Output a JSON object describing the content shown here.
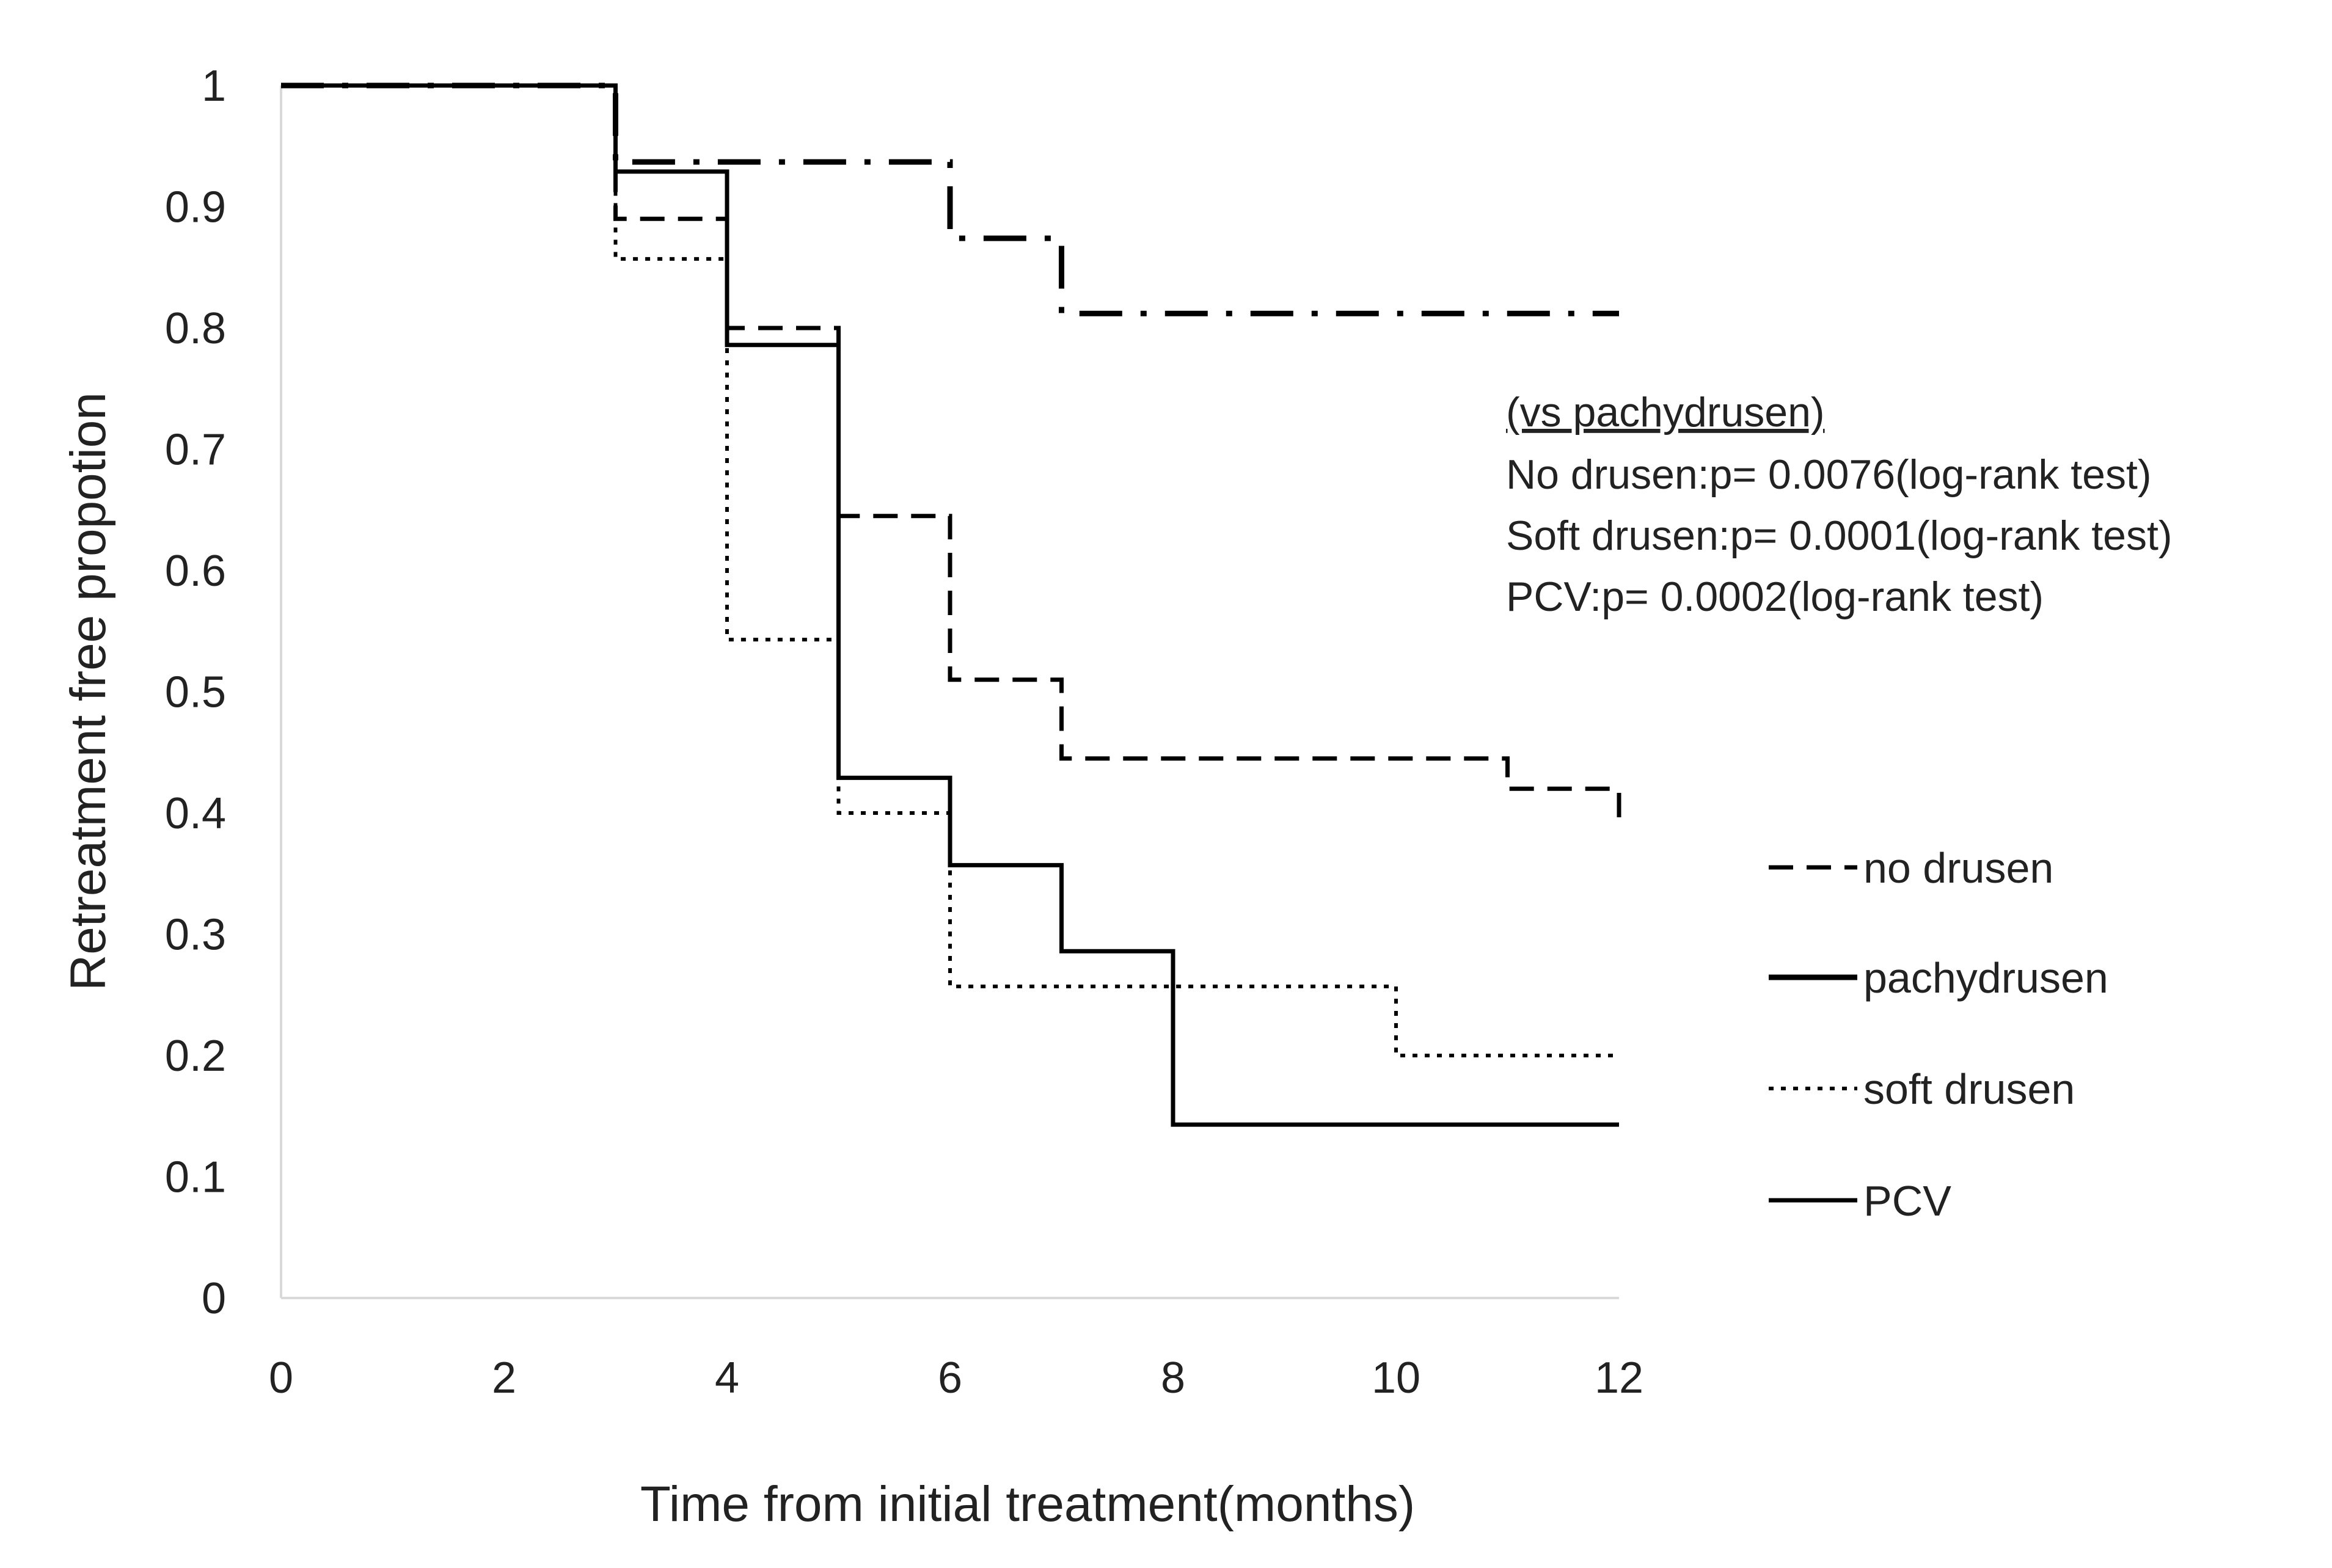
{
  "chart_data": {
    "type": "line",
    "title": "",
    "xlabel": "Time from initial treatment(months)",
    "ylabel": "Retreatment free propotion",
    "xlim": [
      0,
      12
    ],
    "ylim": [
      0,
      1
    ],
    "x_ticks": [
      0,
      2,
      4,
      6,
      8,
      10,
      12
    ],
    "y_ticks": [
      0,
      0.1,
      0.2,
      0.3,
      0.4,
      0.5,
      0.6,
      0.7,
      0.8,
      0.9,
      1
    ],
    "y_tick_labels": [
      "0",
      "0.1",
      "0.2",
      "0.3",
      "0.4",
      "0.5",
      "0.6",
      "0.7",
      "0.8",
      "0.9",
      "1"
    ],
    "grid": false,
    "legend_position": "right",
    "series": [
      {
        "name": "no drusen",
        "style": "dashed",
        "points": [
          [
            0,
            1.0
          ],
          [
            3,
            1.0
          ],
          [
            3,
            0.89
          ],
          [
            4,
            0.89
          ],
          [
            4,
            0.8
          ],
          [
            5,
            0.8
          ],
          [
            5,
            0.645
          ],
          [
            6,
            0.645
          ],
          [
            6,
            0.51
          ],
          [
            7,
            0.51
          ],
          [
            7,
            0.445
          ],
          [
            11,
            0.445
          ],
          [
            11,
            0.42
          ],
          [
            12,
            0.42
          ],
          [
            12,
            0.395
          ]
        ]
      },
      {
        "name": "pachydrusen",
        "style": "dash-dot",
        "points": [
          [
            0,
            1.0
          ],
          [
            3,
            1.0
          ],
          [
            3,
            0.937
          ],
          [
            6,
            0.937
          ],
          [
            6,
            0.874
          ],
          [
            7,
            0.874
          ],
          [
            7,
            0.812
          ],
          [
            12,
            0.812
          ]
        ]
      },
      {
        "name": "soft drusen",
        "style": "dotted",
        "points": [
          [
            0,
            1.0
          ],
          [
            3,
            1.0
          ],
          [
            3,
            0.857
          ],
          [
            4,
            0.857
          ],
          [
            4,
            0.543
          ],
          [
            5,
            0.543
          ],
          [
            5,
            0.4
          ],
          [
            6,
            0.4
          ],
          [
            6,
            0.257
          ],
          [
            10,
            0.257
          ],
          [
            10,
            0.2
          ],
          [
            12,
            0.2
          ]
        ]
      },
      {
        "name": "PCV",
        "style": "solid",
        "points": [
          [
            0,
            1.0
          ],
          [
            3,
            1.0
          ],
          [
            3,
            0.929
          ],
          [
            4,
            0.929
          ],
          [
            4,
            0.786
          ],
          [
            5,
            0.786
          ],
          [
            5,
            0.429
          ],
          [
            6,
            0.429
          ],
          [
            6,
            0.357
          ],
          [
            7,
            0.357
          ],
          [
            7,
            0.286
          ],
          [
            8,
            0.286
          ],
          [
            8,
            0.143
          ],
          [
            12,
            0.143
          ]
        ]
      }
    ],
    "annotations": [
      "(vs pachydrusen)",
      "No drusen:p= 0.0076(log-rank test)",
      "Soft drusen:p= 0.0001(log-rank test)",
      "PCV:p= 0.0002(log-rank test)"
    ]
  }
}
